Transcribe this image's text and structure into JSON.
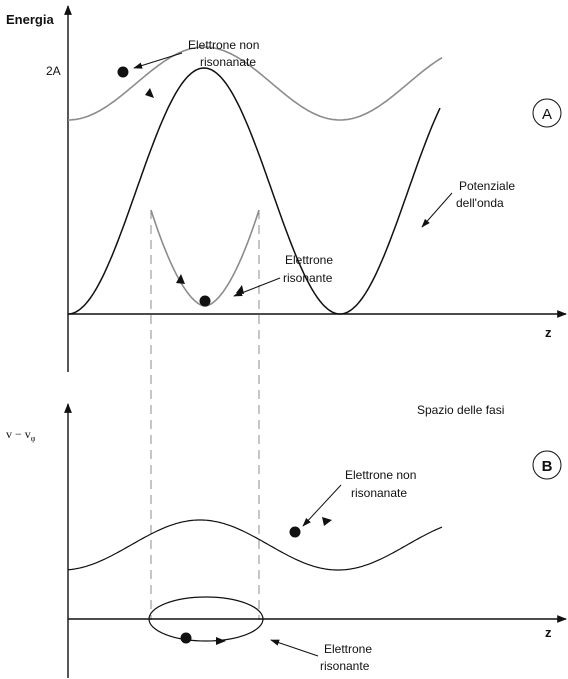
{
  "panel_a": {
    "y_axis_label": "Energia",
    "level_tick_label": "2A",
    "x_axis_label": "z",
    "badge": "A",
    "non_resonant_label": [
      "Elettrone non",
      "risonanate"
    ],
    "wave_potential_label": [
      "Potenziale",
      "dell'onda"
    ],
    "resonant_label": [
      "Elettrone",
      "risonante"
    ]
  },
  "panel_b": {
    "y_axis_label": "v − v",
    "y_axis_subscript": "φ",
    "x_axis_label": "z",
    "badge": "B",
    "title": "Spazio delle fasi",
    "non_resonant_label": [
      "Elettrone non",
      "risonanate"
    ],
    "resonant_label": [
      "Elettrone",
      "risonante"
    ]
  },
  "colors": {
    "potential_curve": "#111111",
    "electron_trajectory": "#8c8c8c",
    "axes": "#111111",
    "dashed_guides": "#8c8c8c"
  }
}
